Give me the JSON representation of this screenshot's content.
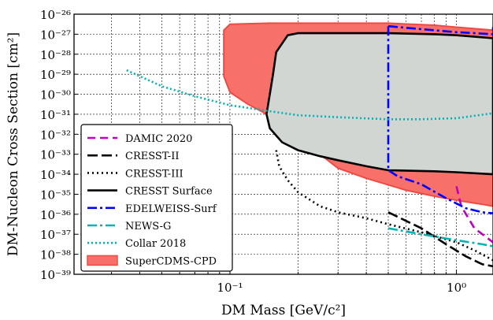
{
  "chart_data": {
    "type": "line",
    "title": "",
    "xlabel": "DM Mass [GeV/c²]",
    "ylabel": "DM-Nucleon Cross Section [cm²]",
    "xscale": "log",
    "yscale": "log",
    "xlim": [
      0.0205,
      1.45
    ],
    "ylim": [
      1e-39,
      1e-26
    ],
    "x_ticks": [
      {
        "value": 0.1,
        "label": "10⁻¹"
      },
      {
        "value": 1,
        "label": "10⁰"
      }
    ],
    "y_ticks": [
      {
        "exp": -26,
        "label": "10⁻²⁶"
      },
      {
        "exp": -27,
        "label": "10⁻²⁷"
      },
      {
        "exp": -28,
        "label": "10⁻²⁸"
      },
      {
        "exp": -29,
        "label": "10⁻²⁹"
      },
      {
        "exp": -30,
        "label": "10⁻³⁰"
      },
      {
        "exp": -31,
        "label": "10⁻³¹"
      },
      {
        "exp": -32,
        "label": "10⁻³²"
      },
      {
        "exp": -33,
        "label": "10⁻³³"
      },
      {
        "exp": -34,
        "label": "10⁻³⁴"
      },
      {
        "exp": -35,
        "label": "10⁻³⁵"
      },
      {
        "exp": -36,
        "label": "10⁻³⁶"
      },
      {
        "exp": -37,
        "label": "10⁻³⁷"
      },
      {
        "exp": -38,
        "label": "10⁻³⁸"
      },
      {
        "exp": -39,
        "label": "10⁻³⁹"
      }
    ],
    "grid": true,
    "legend_position": "lower-left",
    "regions": [
      {
        "name": "SuperCDMS-CPD",
        "fill": "#f8706a",
        "edge": "#f04a44",
        "points": [
          [
            0.094,
            -26.8
          ],
          [
            0.1,
            -26.5
          ],
          [
            0.15,
            -26.45
          ],
          [
            0.3,
            -26.45
          ],
          [
            0.5,
            -26.45
          ],
          [
            0.8,
            -26.55
          ],
          [
            1.0,
            -26.65
          ],
          [
            1.45,
            -26.8
          ],
          [
            1.45,
            -35.6
          ],
          [
            1.3,
            -35.5
          ],
          [
            1.0,
            -35.3
          ],
          [
            0.8,
            -35.1
          ],
          [
            0.6,
            -34.8
          ],
          [
            0.4,
            -34.2
          ],
          [
            0.3,
            -33.7
          ],
          [
            0.25,
            -33.0
          ],
          [
            0.2,
            -32.1
          ],
          [
            0.16,
            -31.3
          ],
          [
            0.14,
            -30.9
          ],
          [
            0.12,
            -30.5
          ],
          [
            0.1,
            -29.9
          ],
          [
            0.094,
            -29.1
          ],
          [
            0.094,
            -26.8
          ]
        ]
      },
      {
        "name": "CRESST Surface",
        "fill": "#d2d6d2",
        "edge": "#000000",
        "points": [
          [
            0.16,
            -27.9
          ],
          [
            0.18,
            -27.05
          ],
          [
            0.2,
            -26.95
          ],
          [
            0.3,
            -26.95
          ],
          [
            0.5,
            -26.95
          ],
          [
            0.8,
            -27.0
          ],
          [
            1.0,
            -27.05
          ],
          [
            1.45,
            -27.2
          ],
          [
            1.45,
            -34.0
          ],
          [
            1.0,
            -33.9
          ],
          [
            0.8,
            -33.85
          ],
          [
            0.5,
            -33.8
          ],
          [
            0.4,
            -33.6
          ],
          [
            0.3,
            -33.3
          ],
          [
            0.25,
            -33.1
          ],
          [
            0.2,
            -32.8
          ],
          [
            0.17,
            -32.4
          ],
          [
            0.15,
            -31.7
          ],
          [
            0.145,
            -31.0
          ],
          [
            0.15,
            -30.0
          ],
          [
            0.155,
            -29.0
          ],
          [
            0.16,
            -27.9
          ]
        ]
      }
    ],
    "series": [
      {
        "name": "DAMIC 2020",
        "color": "#bf00bf",
        "dash": "10,6",
        "points": [
          [
            1.0,
            -34.6
          ],
          [
            1.05,
            -35.6
          ],
          [
            1.2,
            -36.7
          ],
          [
            1.45,
            -37.4
          ]
        ]
      },
      {
        "name": "CRESST-II",
        "color": "#000000",
        "dash": "13,5",
        "points": [
          [
            0.5,
            -35.9
          ],
          [
            0.7,
            -36.7
          ],
          [
            0.9,
            -37.5
          ],
          [
            1.1,
            -38.1
          ],
          [
            1.3,
            -38.5
          ],
          [
            1.45,
            -38.6
          ]
        ]
      },
      {
        "name": "CRESST-III",
        "color": "#000000",
        "dash": "2,4",
        "points": [
          [
            0.16,
            -32.8
          ],
          [
            0.165,
            -33.6
          ],
          [
            0.18,
            -34.3
          ],
          [
            0.2,
            -34.9
          ],
          [
            0.25,
            -35.6
          ],
          [
            0.3,
            -35.9
          ],
          [
            0.4,
            -36.2
          ],
          [
            0.5,
            -36.5
          ],
          [
            0.7,
            -36.9
          ],
          [
            1.0,
            -37.4
          ],
          [
            1.2,
            -37.8
          ],
          [
            1.45,
            -38.3
          ]
        ]
      },
      {
        "name": "CRESST Surface",
        "color": "#000000",
        "dash": "",
        "points": []
      },
      {
        "name": "EDELWEISS-Surf",
        "color": "#0000ff",
        "dash": "12,4,3,4",
        "points": [
          [
            0.5,
            -26.6
          ],
          [
            0.7,
            -26.75
          ],
          [
            1.0,
            -26.9
          ],
          [
            1.45,
            -27.0
          ],
          [
            1.45,
            -26.65
          ]
        ],
        "points2": [
          [
            0.5,
            -26.6
          ],
          [
            0.5,
            -33.8
          ],
          [
            0.55,
            -34.1
          ],
          [
            0.7,
            -34.5
          ],
          [
            0.9,
            -35.2
          ],
          [
            1.1,
            -35.7
          ],
          [
            1.3,
            -35.9
          ],
          [
            1.45,
            -35.95
          ]
        ]
      },
      {
        "name": "NEWS-G",
        "color": "#00b3b3",
        "dash": "12,4,3,4",
        "points": [
          [
            0.5,
            -36.7
          ],
          [
            0.7,
            -37.0
          ],
          [
            1.0,
            -37.3
          ],
          [
            1.3,
            -37.5
          ],
          [
            1.45,
            -37.6
          ]
        ]
      },
      {
        "name": "Collar 2018",
        "color": "#00b3b3",
        "dash": "2,3",
        "points": [
          [
            0.035,
            -28.8
          ],
          [
            0.05,
            -29.6
          ],
          [
            0.07,
            -30.1
          ],
          [
            0.1,
            -30.55
          ],
          [
            0.15,
            -30.85
          ],
          [
            0.2,
            -31.05
          ],
          [
            0.3,
            -31.15
          ],
          [
            0.5,
            -31.25
          ],
          [
            0.7,
            -31.25
          ],
          [
            1.0,
            -31.2
          ],
          [
            1.45,
            -30.95
          ]
        ]
      },
      {
        "name": "SuperCDMS-CPD",
        "color": "#f04a44",
        "dash": "",
        "points": []
      }
    ],
    "legend": [
      {
        "label": "DAMIC 2020",
        "color": "#bf00bf",
        "dash": "10,6"
      },
      {
        "label": "CRESST-II",
        "color": "#000000",
        "dash": "13,5"
      },
      {
        "label": "CRESST-III",
        "color": "#000000",
        "dash": "2,4"
      },
      {
        "label": "CRESST Surface",
        "color": "#000000",
        "dash": ""
      },
      {
        "label": "EDELWEISS-Surf",
        "color": "#0000ff",
        "dash": "12,4,3,4"
      },
      {
        "label": "NEWS-G",
        "color": "#00b3b3",
        "dash": "12,4,3,4"
      },
      {
        "label": "Collar 2018",
        "color": "#00b3b3",
        "dash": "2,3"
      },
      {
        "label": "SuperCDMS-CPD",
        "color": "#f04a44",
        "dash": "",
        "patch": true
      }
    ]
  }
}
